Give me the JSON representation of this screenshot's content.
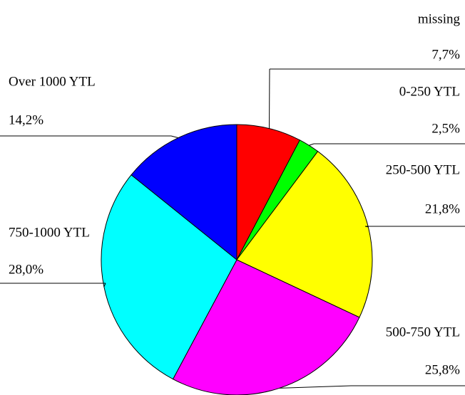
{
  "chart_data": {
    "type": "pie",
    "categories": [
      "missing",
      "0-250 YTL",
      "250-500 YTL",
      "500-750 YTL",
      "750-1000 YTL",
      "Over 1000 YTL"
    ],
    "values": [
      7.7,
      2.5,
      21.8,
      25.8,
      28.0,
      14.2
    ],
    "value_labels": [
      "7,7%",
      "2,5%",
      "21,8%",
      "25,8%",
      "28,0%",
      "14,2%"
    ],
    "colors": [
      "#ff0000",
      "#00ff00",
      "#ffff00",
      "#ff00ff",
      "#00ffff",
      "#0000ff"
    ]
  }
}
